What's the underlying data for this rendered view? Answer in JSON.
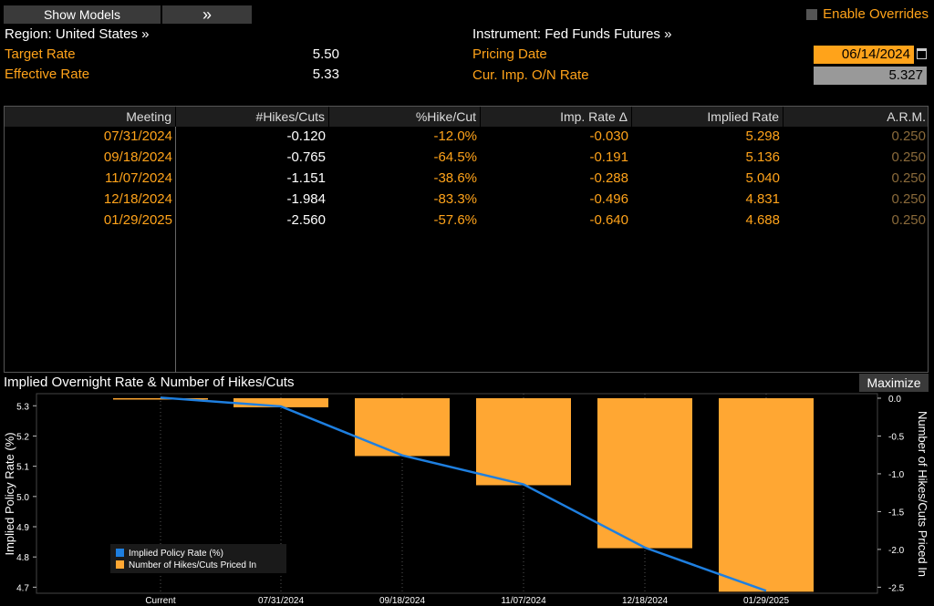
{
  "toolbar": {
    "show_models": "Show Models",
    "expand_glyph": "»",
    "enable_overrides": "Enable Overrides"
  },
  "header": {
    "region": "Region: United States »",
    "target_rate_label": "Target Rate",
    "target_rate_value": "5.50",
    "effective_rate_label": "Effective Rate",
    "effective_rate_value": "5.33",
    "instrument": "Instrument: Fed Funds Futures »",
    "pricing_date_label": "Pricing Date",
    "pricing_date_value": "06/14/2024",
    "cur_imp_label": "Cur. Imp. O/N Rate",
    "cur_imp_value": "5.327"
  },
  "table": {
    "columns": [
      "Meeting",
      "#Hikes/Cuts",
      "%Hike/Cut",
      "Imp. Rate Δ",
      "Implied Rate",
      "A.R.M."
    ],
    "rows": [
      [
        "07/31/2024",
        "-0.120",
        "-12.0%",
        "-0.030",
        "5.298",
        "0.250"
      ],
      [
        "09/18/2024",
        "-0.765",
        "-64.5%",
        "-0.191",
        "5.136",
        "0.250"
      ],
      [
        "11/07/2024",
        "-1.151",
        "-38.6%",
        "-0.288",
        "5.040",
        "0.250"
      ],
      [
        "12/18/2024",
        "-1.984",
        "-83.3%",
        "-0.496",
        "4.831",
        "0.250"
      ],
      [
        "01/29/2025",
        "-2.560",
        "-57.6%",
        "-0.640",
        "4.688",
        "0.250"
      ]
    ]
  },
  "chart_section": {
    "title": "Implied Overnight Rate & Number of Hikes/Cuts",
    "maximize": "Maximize"
  },
  "chart_data": {
    "type": "bar",
    "categories": [
      "Current",
      "07/31/2024",
      "09/18/2024",
      "11/07/2024",
      "12/18/2024",
      "01/29/2025"
    ],
    "series": [
      {
        "name": "Implied Policy Rate (%)",
        "type": "line",
        "color": "#1e7fe0",
        "axis": "left",
        "values": [
          5.327,
          5.298,
          5.136,
          5.04,
          4.831,
          4.688
        ]
      },
      {
        "name": "Number of Hikes/Cuts Priced In",
        "type": "bar",
        "color": "#ffa733",
        "axis": "right",
        "values": [
          0,
          -0.12,
          -0.765,
          -1.151,
          -1.984,
          -2.56
        ]
      }
    ],
    "ylabel": "Implied Policy Rate (%)",
    "y2label": "Number of Hikes/Cuts Priced In",
    "ylim": [
      4.68,
      5.34
    ],
    "y2lim": [
      -2.58,
      0.06
    ],
    "yticks": [
      4.7,
      4.8,
      4.9,
      5.0,
      5.1,
      5.2,
      5.3
    ],
    "y2ticks": [
      0.0,
      -0.5,
      -1.0,
      -1.5,
      -2.0,
      -2.5
    ],
    "legend_position": "bottom-left"
  }
}
